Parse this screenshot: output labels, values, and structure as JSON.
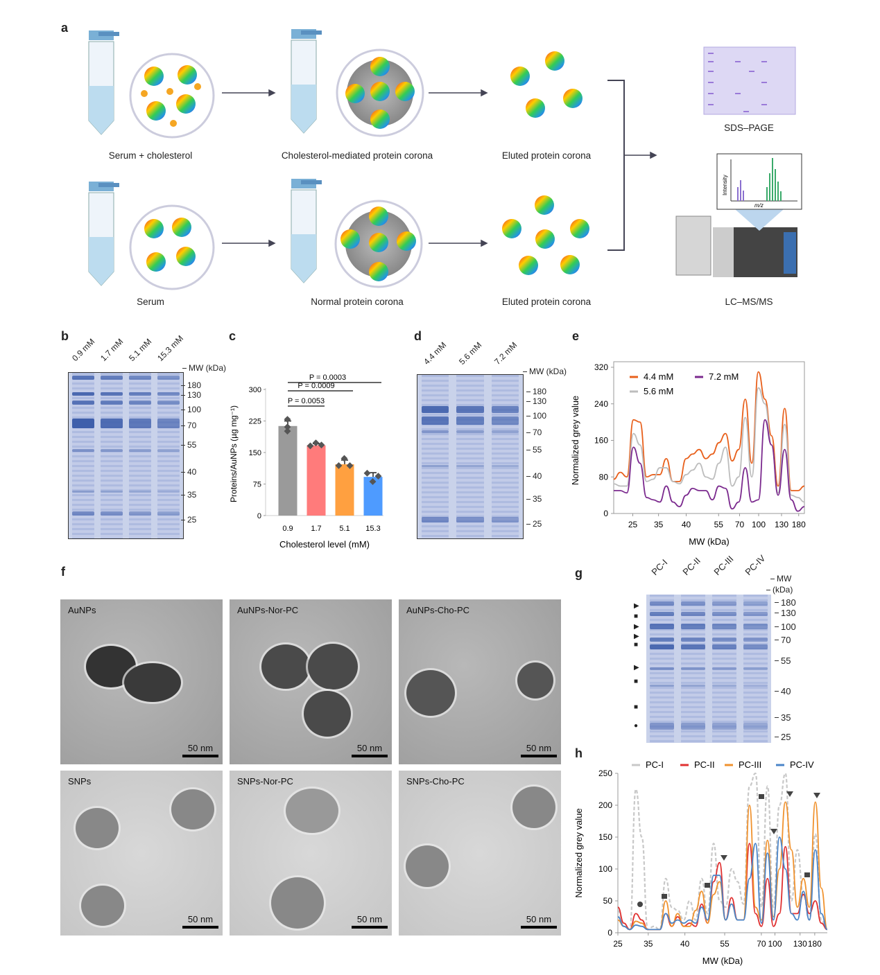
{
  "panels": {
    "a": "a",
    "b": "b",
    "c": "c",
    "d": "d",
    "e": "e",
    "f": "f",
    "g": "g",
    "h": "h"
  },
  "panel_a": {
    "captions": [
      "Serum + cholesterol",
      "Cholesterol-mediated protein corona",
      "Eluted protein corona",
      "Serum",
      "Normal protein corona",
      "Eluted protein corona",
      "SDS–PAGE",
      "LC–MS/MS"
    ],
    "spectrum": {
      "ylabel": "Intensity",
      "xlabel": "m/z"
    }
  },
  "panel_b": {
    "lanes": [
      "0.9 mM",
      "1.7 mM",
      "5.1 mM",
      "15.3 mM"
    ],
    "mw_title": "MW (kDa)",
    "mw": [
      "180",
      "130",
      "100",
      "70",
      "55",
      "40",
      "35",
      "25"
    ]
  },
  "panel_d": {
    "lanes": [
      "4.4 mM",
      "5.6 mM",
      "7.2 mM"
    ],
    "mw_title": "MW (kDa)",
    "mw": [
      "180",
      "130",
      "100",
      "70",
      "55",
      "40",
      "35",
      "25"
    ]
  },
  "panel_g": {
    "lanes": [
      "PC-I",
      "PC-II",
      "PC-III",
      "PC-IV"
    ],
    "mw_title": "MW",
    "mw_unit": "(kDa)",
    "mw": [
      "180",
      "130",
      "100",
      "70",
      "55",
      "40",
      "35",
      "25"
    ],
    "markers": [
      "triangle-right-icon",
      "square-icon",
      "triangle-right-icon",
      "triangle-right-icon",
      "square-icon",
      "triangle-right-icon",
      "square-icon",
      "square-icon",
      "circle-icon"
    ]
  },
  "panel_f": {
    "images": [
      {
        "label": "AuNPs",
        "scale": "50 nm"
      },
      {
        "label": "AuNPs-Nor-PC",
        "scale": "50 nm"
      },
      {
        "label": "AuNPs-Cho-PC",
        "scale": "50 nm"
      },
      {
        "label": "SNPs",
        "scale": "50 nm"
      },
      {
        "label": "SNPs-Nor-PC",
        "scale": "50 nm"
      },
      {
        "label": "SNPs-Cho-PC",
        "scale": "50 nm"
      }
    ]
  },
  "chart_data": [
    {
      "id": "c",
      "type": "bar",
      "categories": [
        "0.9",
        "1.7",
        "5.1",
        "15.3"
      ],
      "values": [
        213,
        167,
        122,
        92
      ],
      "points": [
        [
          228,
          210,
          200
        ],
        [
          165,
          172,
          167
        ],
        [
          118,
          135,
          118
        ],
        [
          100,
          80,
          93
        ]
      ],
      "errors": [
        12,
        4,
        10,
        10
      ],
      "colors": [
        "#9a9a9a",
        "#ff7b7b",
        "#ffa040",
        "#4e9bff"
      ],
      "xlabel": "Cholesterol level (mM)",
      "ylabel": "Proteins/AuNPs (µg mg⁻¹)",
      "ylim": [
        0,
        300
      ],
      "yticks": [
        "0",
        "75",
        "150",
        "225",
        "300"
      ],
      "annotations": [
        {
          "label": "P = 0.0053",
          "from": 0,
          "to": 1
        },
        {
          "label": "P = 0.0009",
          "from": 0,
          "to": 2
        },
        {
          "label": "P = 0.0003",
          "from": 0,
          "to": 3
        }
      ]
    },
    {
      "id": "e",
      "type": "line",
      "xlabel": "MW (kDa)",
      "ylabel": "Normalized grey value",
      "ylim": [
        0,
        320
      ],
      "yticks": [
        "0",
        "80",
        "160",
        "240",
        "320"
      ],
      "xticks": [
        "25",
        "35",
        "40",
        "55",
        "70",
        "100",
        "130",
        "180"
      ],
      "legend": "top-left",
      "series": [
        {
          "name": "4.4 mM",
          "color": "#e8601c",
          "values": [
            75,
            90,
            80,
            205,
            200,
            80,
            85,
            85,
            120,
            70,
            70,
            120,
            130,
            140,
            120,
            130,
            155,
            175,
            115,
            140,
            250,
            110,
            310,
            250,
            170,
            60,
            230,
            50,
            50,
            60
          ]
        },
        {
          "name": "5.6 mM",
          "color": "#bdbdbd",
          "values": [
            65,
            60,
            60,
            175,
            150,
            70,
            75,
            100,
            100,
            70,
            65,
            85,
            95,
            110,
            80,
            75,
            110,
            145,
            60,
            80,
            210,
            80,
            275,
            240,
            150,
            45,
            195,
            40,
            35,
            25
          ]
        },
        {
          "name": "7.2 mM",
          "color": "#7b2a8e",
          "values": [
            50,
            50,
            45,
            145,
            110,
            35,
            30,
            25,
            60,
            25,
            15,
            40,
            55,
            50,
            50,
            30,
            60,
            55,
            10,
            25,
            100,
            25,
            30,
            205,
            150,
            40,
            140,
            30,
            5,
            15
          ]
        }
      ]
    },
    {
      "id": "h",
      "type": "line",
      "xlabel": "MW (kDa)",
      "ylabel": "Normalized grey value",
      "ylim": [
        0,
        250
      ],
      "yticks": [
        "0",
        "50",
        "100",
        "150",
        "200",
        "250"
      ],
      "xticks": [
        "25",
        "35",
        "40",
        "55",
        "70",
        "100",
        "130",
        "180"
      ],
      "legend": "top",
      "series": [
        {
          "name": "PC-I",
          "color": "#c8c8c8",
          "dashed": true,
          "values": [
            35,
            10,
            5,
            225,
            150,
            5,
            10,
            5,
            85,
            40,
            35,
            20,
            50,
            20,
            85,
            30,
            140,
            50,
            40,
            100,
            80,
            45,
            230,
            250,
            40,
            230,
            40,
            200,
            250,
            50,
            130,
            60,
            20,
            155,
            20,
            5
          ]
        },
        {
          "name": "PC-II",
          "color": "#e03030",
          "values": [
            40,
            15,
            5,
            30,
            20,
            5,
            5,
            5,
            30,
            10,
            25,
            10,
            15,
            10,
            45,
            15,
            80,
            110,
            20,
            55,
            20,
            20,
            140,
            30,
            10,
            85,
            10,
            30,
            135,
            30,
            30,
            60,
            30,
            50,
            15,
            5
          ]
        },
        {
          "name": "PC-III",
          "color": "#f0922e",
          "values": [
            20,
            10,
            5,
            18,
            15,
            5,
            5,
            5,
            50,
            10,
            30,
            10,
            10,
            35,
            65,
            15,
            60,
            80,
            20,
            45,
            20,
            20,
            200,
            40,
            20,
            145,
            25,
            100,
            205,
            130,
            40,
            85,
            40,
            205,
            70,
            5
          ]
        },
        {
          "name": "PC-IV",
          "color": "#4a84c8",
          "values": [
            25,
            10,
            5,
            12,
            10,
            5,
            5,
            5,
            30,
            15,
            20,
            15,
            20,
            15,
            40,
            20,
            90,
            90,
            20,
            45,
            20,
            20,
            85,
            140,
            15,
            125,
            20,
            150,
            100,
            30,
            20,
            65,
            20,
            130,
            30,
            5
          ]
        }
      ]
    }
  ]
}
